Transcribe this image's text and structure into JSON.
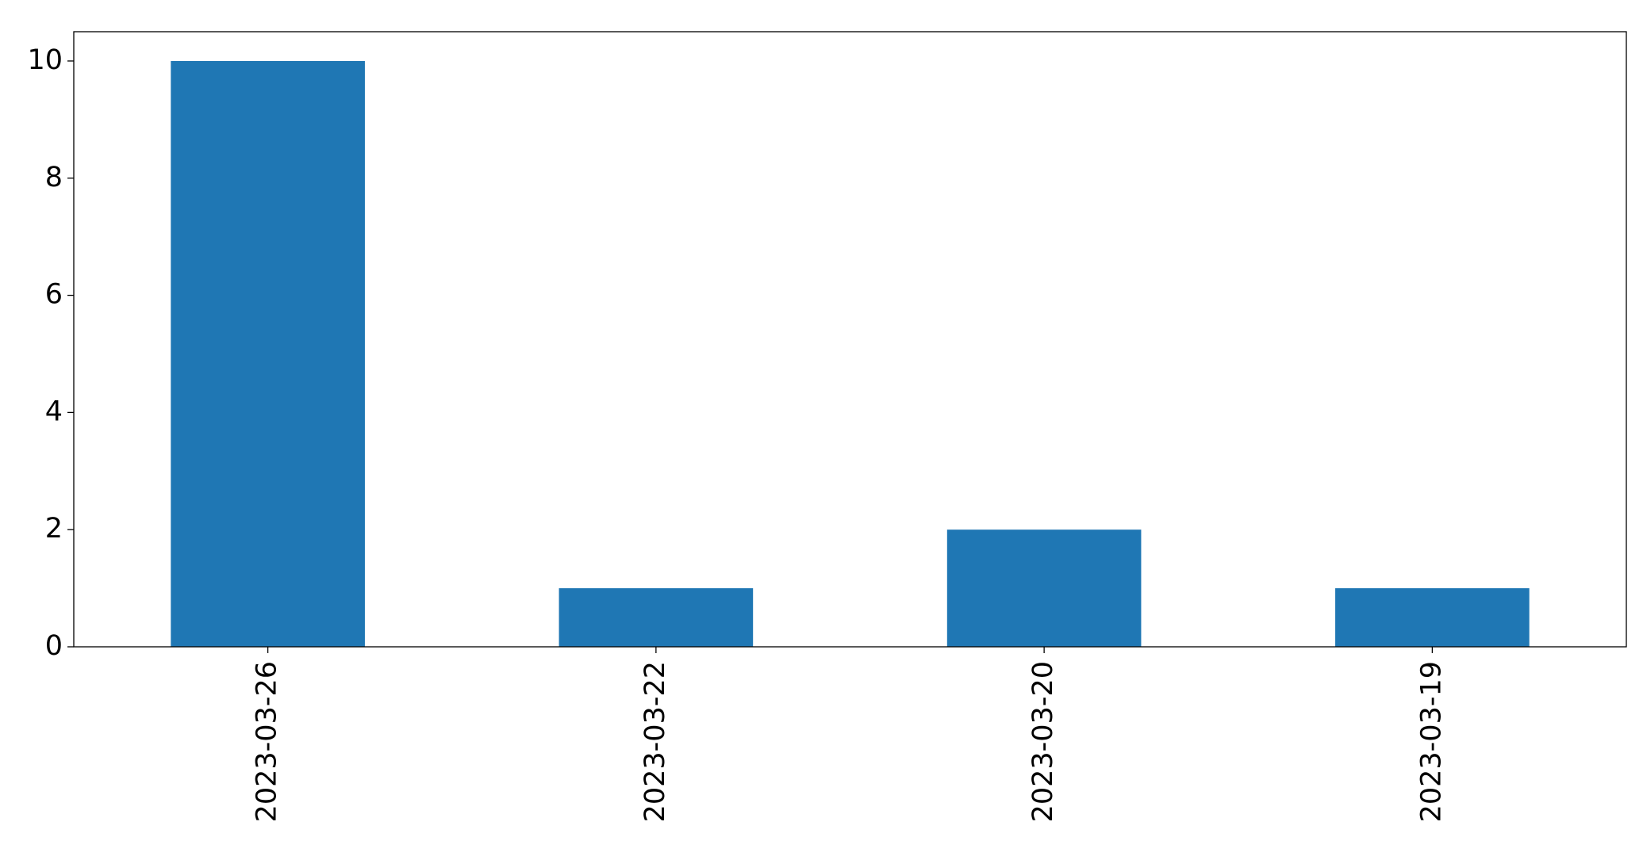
{
  "chart_data": {
    "type": "bar",
    "categories": [
      "2023-03-26",
      "2023-03-22",
      "2023-03-20",
      "2023-03-19"
    ],
    "values": [
      10,
      1,
      2,
      1
    ],
    "color": "#1f77b4",
    "ylim": [
      0,
      10.5
    ],
    "yticks": [
      0,
      2,
      4,
      6,
      8,
      10
    ],
    "grid": false
  }
}
